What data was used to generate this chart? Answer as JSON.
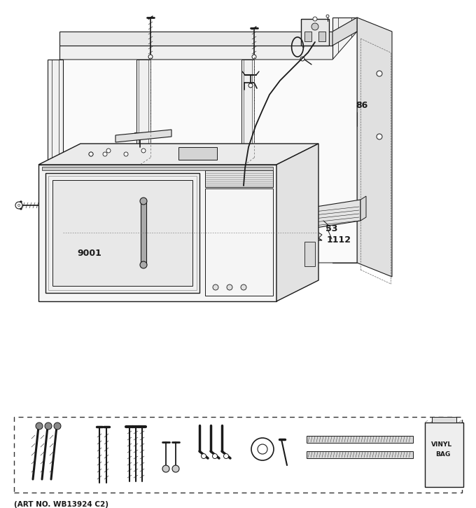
{
  "bg_color": "#ffffff",
  "lc": "#1a1a1a",
  "dc": "#666666",
  "art_no": "(ART NO. WB13924 C2)",
  "label_9001": "9001",
  "label_53": "53",
  "label_1112": "1112",
  "label_86": "86",
  "label_fontsize": 9,
  "art_fontsize": 7.5,
  "figw": 6.8,
  "figh": 7.25,
  "dpi": 100
}
